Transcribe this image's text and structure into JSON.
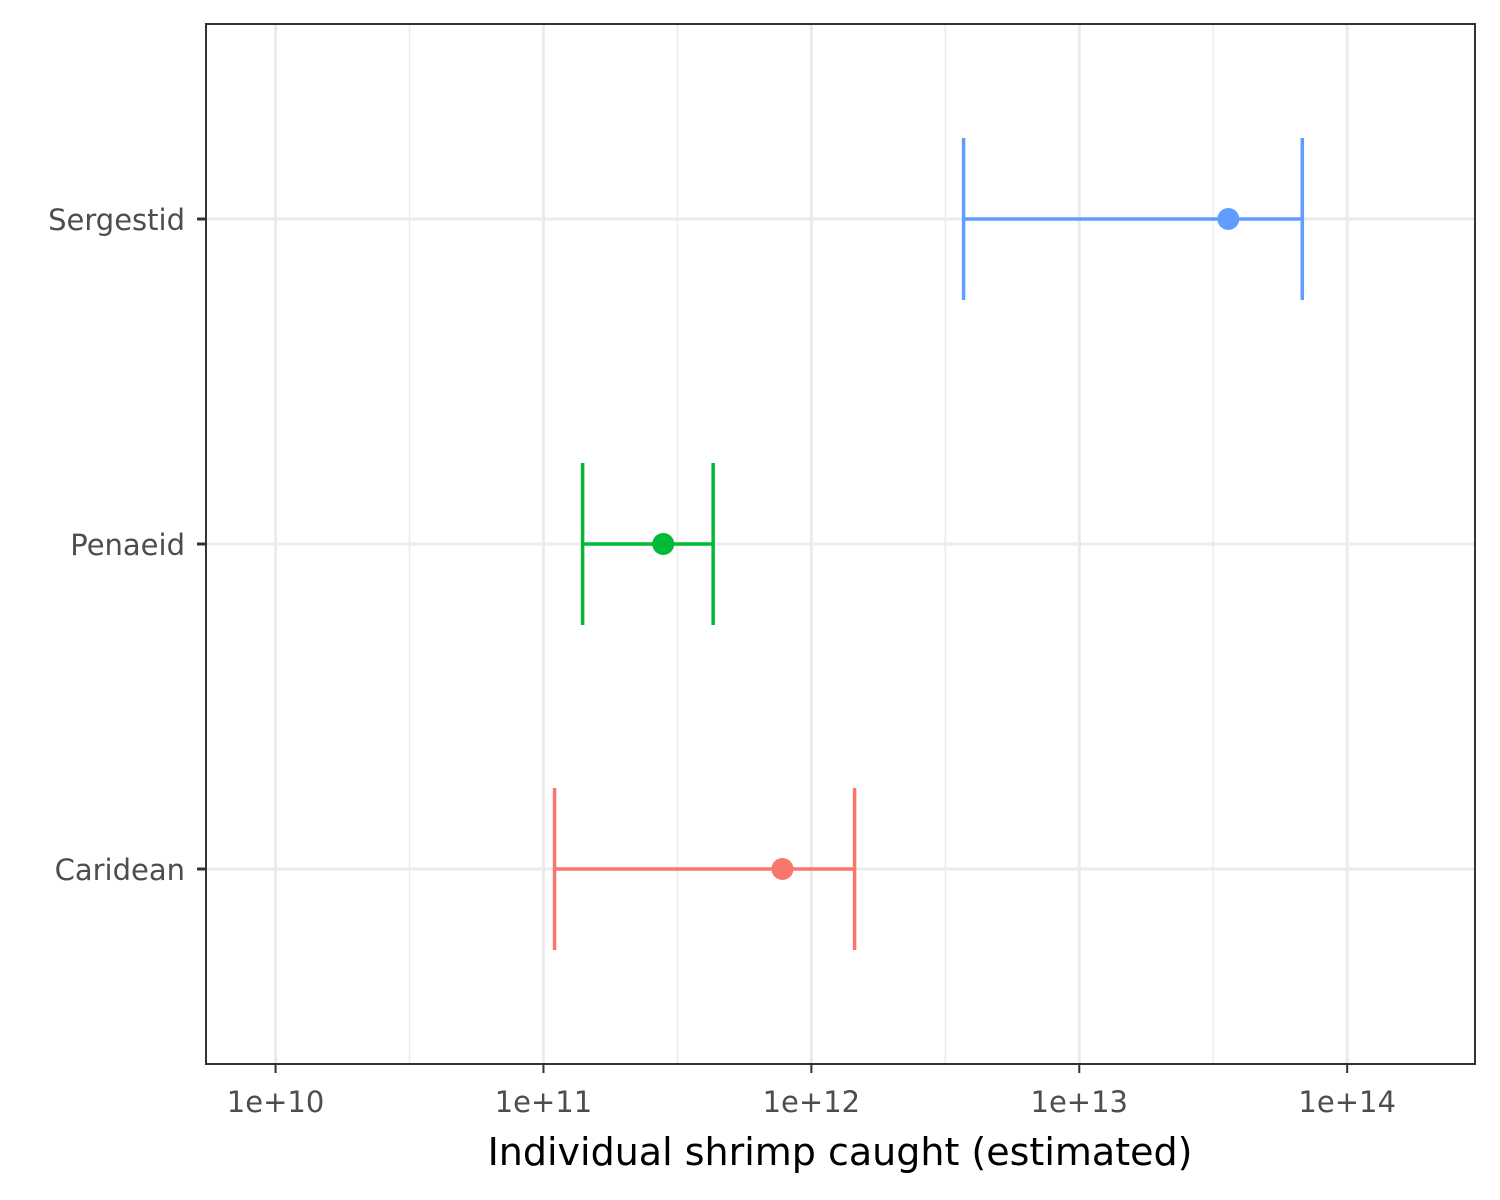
{
  "chart_data": {
    "type": "errorbar",
    "title": "",
    "xlabel": "Individual shrimp caught (estimated)",
    "ylabel": "",
    "x_scale": "log10",
    "xlim": [
      5500000000.0,
      300000000000000.0
    ],
    "x_ticks": [
      10000000000.0,
      100000000000.0,
      1000000000000.0,
      10000000000000.0,
      100000000000000.0
    ],
    "x_tick_labels": [
      "1e+10",
      "1e+11",
      "1e+12",
      "1e+13",
      "1e+14"
    ],
    "categories": [
      "Caridean",
      "Penaeid",
      "Sergestid"
    ],
    "grid": true,
    "legend": "none",
    "series": [
      {
        "category": "Caridean",
        "estimate": 780000000000.0,
        "lower": 110000000000.0,
        "upper": 1450000000000.0,
        "color": "#F8766D"
      },
      {
        "category": "Penaeid",
        "estimate": 280000000000.0,
        "lower": 140000000000.0,
        "upper": 430000000000.0,
        "color": "#00BA38"
      },
      {
        "category": "Sergestid",
        "estimate": 36000000000000.0,
        "lower": 3700000000000.0,
        "upper": 68000000000000.0,
        "color": "#619CFF"
      }
    ]
  }
}
